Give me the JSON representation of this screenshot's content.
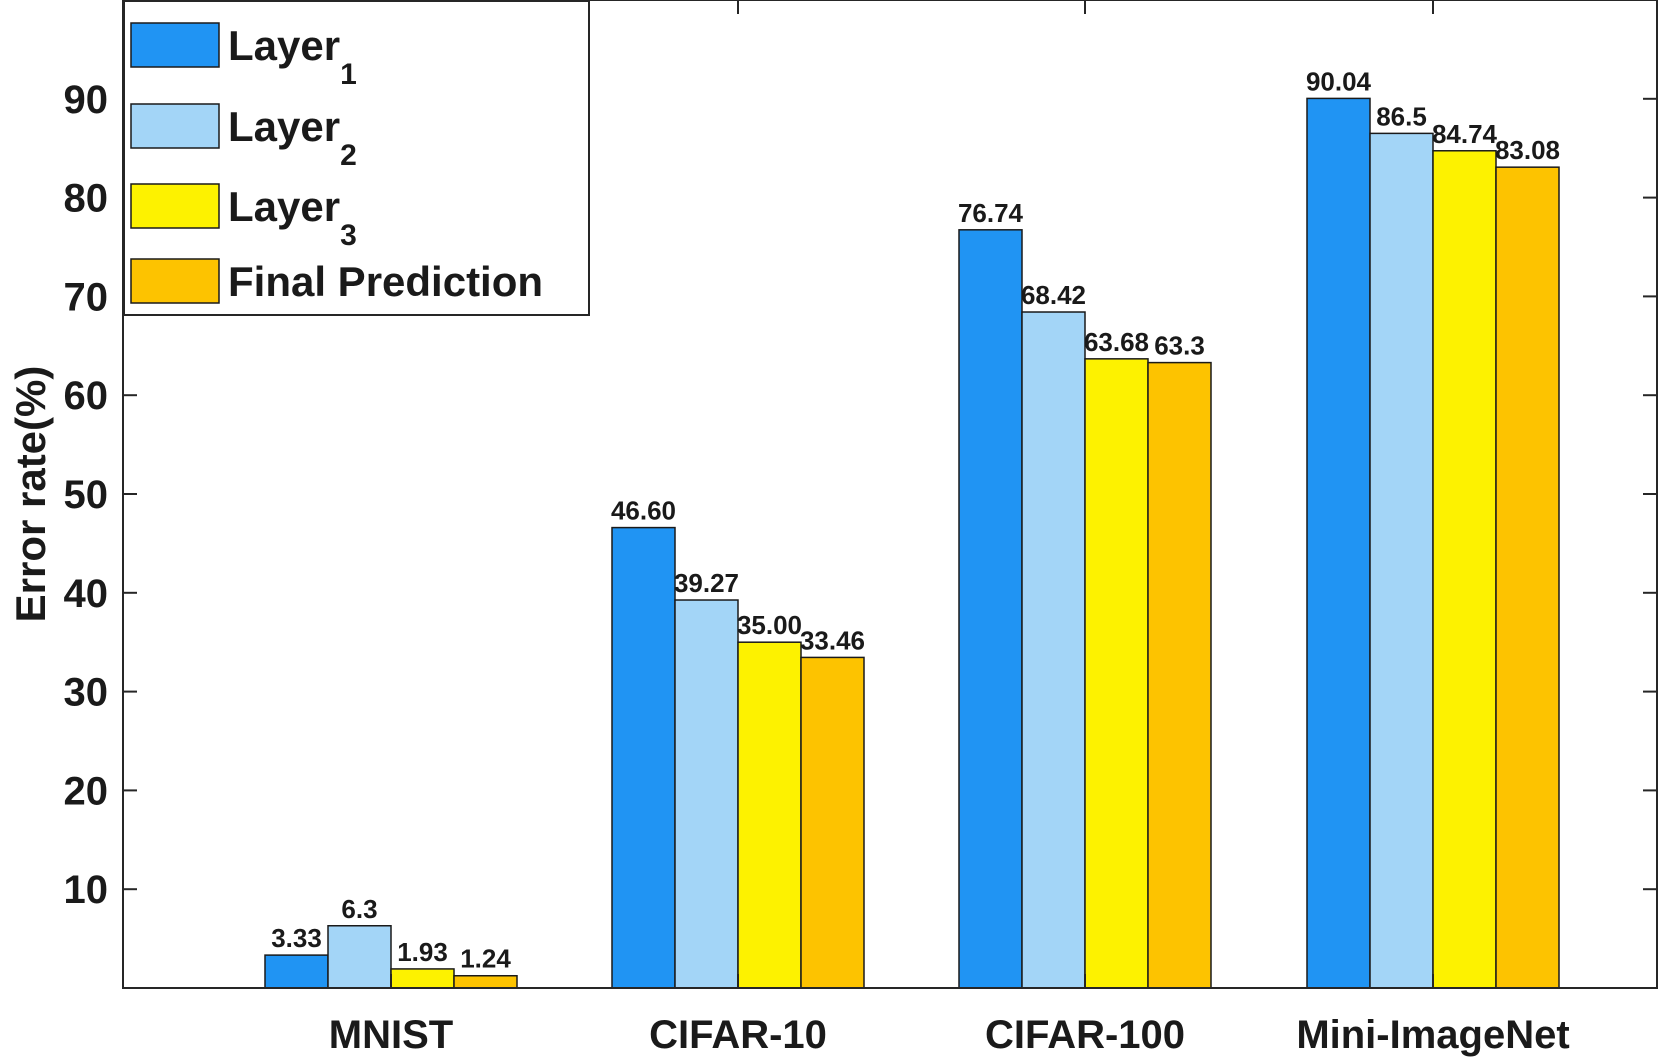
{
  "chart_data": {
    "type": "bar",
    "title": "",
    "xlabel": "",
    "ylabel": "Error rate(%)",
    "ylim": [
      0,
      100
    ],
    "yticks": [
      10,
      20,
      30,
      40,
      50,
      60,
      70,
      80,
      90
    ],
    "grid": false,
    "legend_position": "top-left",
    "categories": [
      "MNIST",
      "CIFAR-10",
      "CIFAR-100",
      "Mini-ImageNet"
    ],
    "series": [
      {
        "name": "Layer",
        "subscript": "1",
        "color": "#2094f3",
        "values": [
          3.33,
          46.6,
          76.74,
          90.04
        ],
        "labels": [
          "3.33",
          "46.60",
          "76.74",
          "90.04"
        ]
      },
      {
        "name": "Layer",
        "subscript": "2",
        "color": "#a3d5f7",
        "values": [
          6.3,
          39.27,
          68.42,
          86.5
        ],
        "labels": [
          "6.3",
          "39.27",
          "68.42",
          "86.5"
        ]
      },
      {
        "name": "Layer",
        "subscript": "3",
        "color": "#fdf200",
        "values": [
          1.93,
          35.0,
          63.68,
          84.74
        ],
        "labels": [
          "1.93",
          "35.00",
          "63.68",
          "84.74"
        ]
      },
      {
        "name": "Final Prediction",
        "subscript": "",
        "color": "#fdc300",
        "values": [
          1.24,
          33.46,
          63.3,
          83.08
        ],
        "labels": [
          "1.24",
          "33.46",
          "63.3",
          "83.08"
        ]
      }
    ]
  }
}
